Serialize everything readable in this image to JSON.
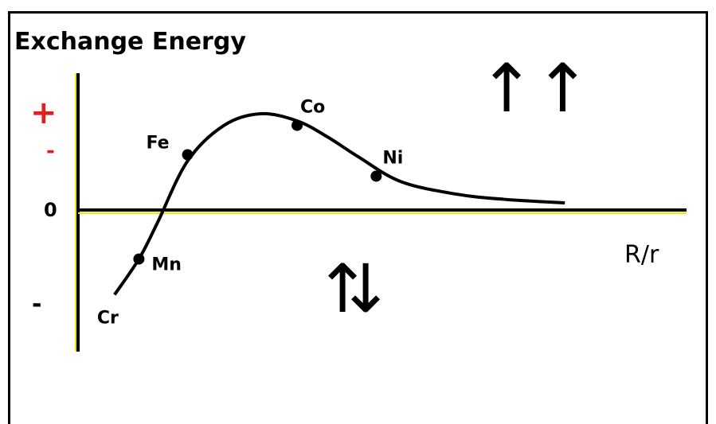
{
  "chart_data": {
    "type": "line",
    "title": "Exchange Energy",
    "xlabel": "R/r",
    "ylabel": "",
    "y_tick_labels": {
      "plus": "+",
      "small_minus": "-",
      "zero": "0",
      "minus": "-"
    },
    "xlim": [
      0,
      1
    ],
    "ylim": [
      -1.2,
      1.2
    ],
    "grid": false,
    "legend": "none",
    "curve": {
      "color": "#000000",
      "x": [
        0.06,
        0.1,
        0.13,
        0.18,
        0.24,
        0.3,
        0.36,
        0.41,
        0.46,
        0.53,
        0.62,
        0.7,
        0.8
      ],
      "y": [
        -0.95,
        -0.55,
        -0.15,
        0.55,
        0.95,
        1.08,
        1.0,
        0.82,
        0.6,
        0.32,
        0.18,
        0.12,
        0.08
      ]
    },
    "points": [
      {
        "name": "Cr",
        "x": 0.06,
        "y": -0.95
      },
      {
        "name": "Mn",
        "x": 0.1,
        "y": -0.55
      },
      {
        "name": "Fe",
        "x": 0.18,
        "y": 0.62
      },
      {
        "name": "Co",
        "x": 0.36,
        "y": 0.95
      },
      {
        "name": "Ni",
        "x": 0.49,
        "y": 0.38
      }
    ],
    "annotations": {
      "parallel_spins": "↑↑",
      "antiparallel_up": "↑",
      "antiparallel_down": "↓"
    }
  },
  "colors": {
    "axis": "#000000",
    "curve": "#000000",
    "highlight": "#f2e600"
  }
}
